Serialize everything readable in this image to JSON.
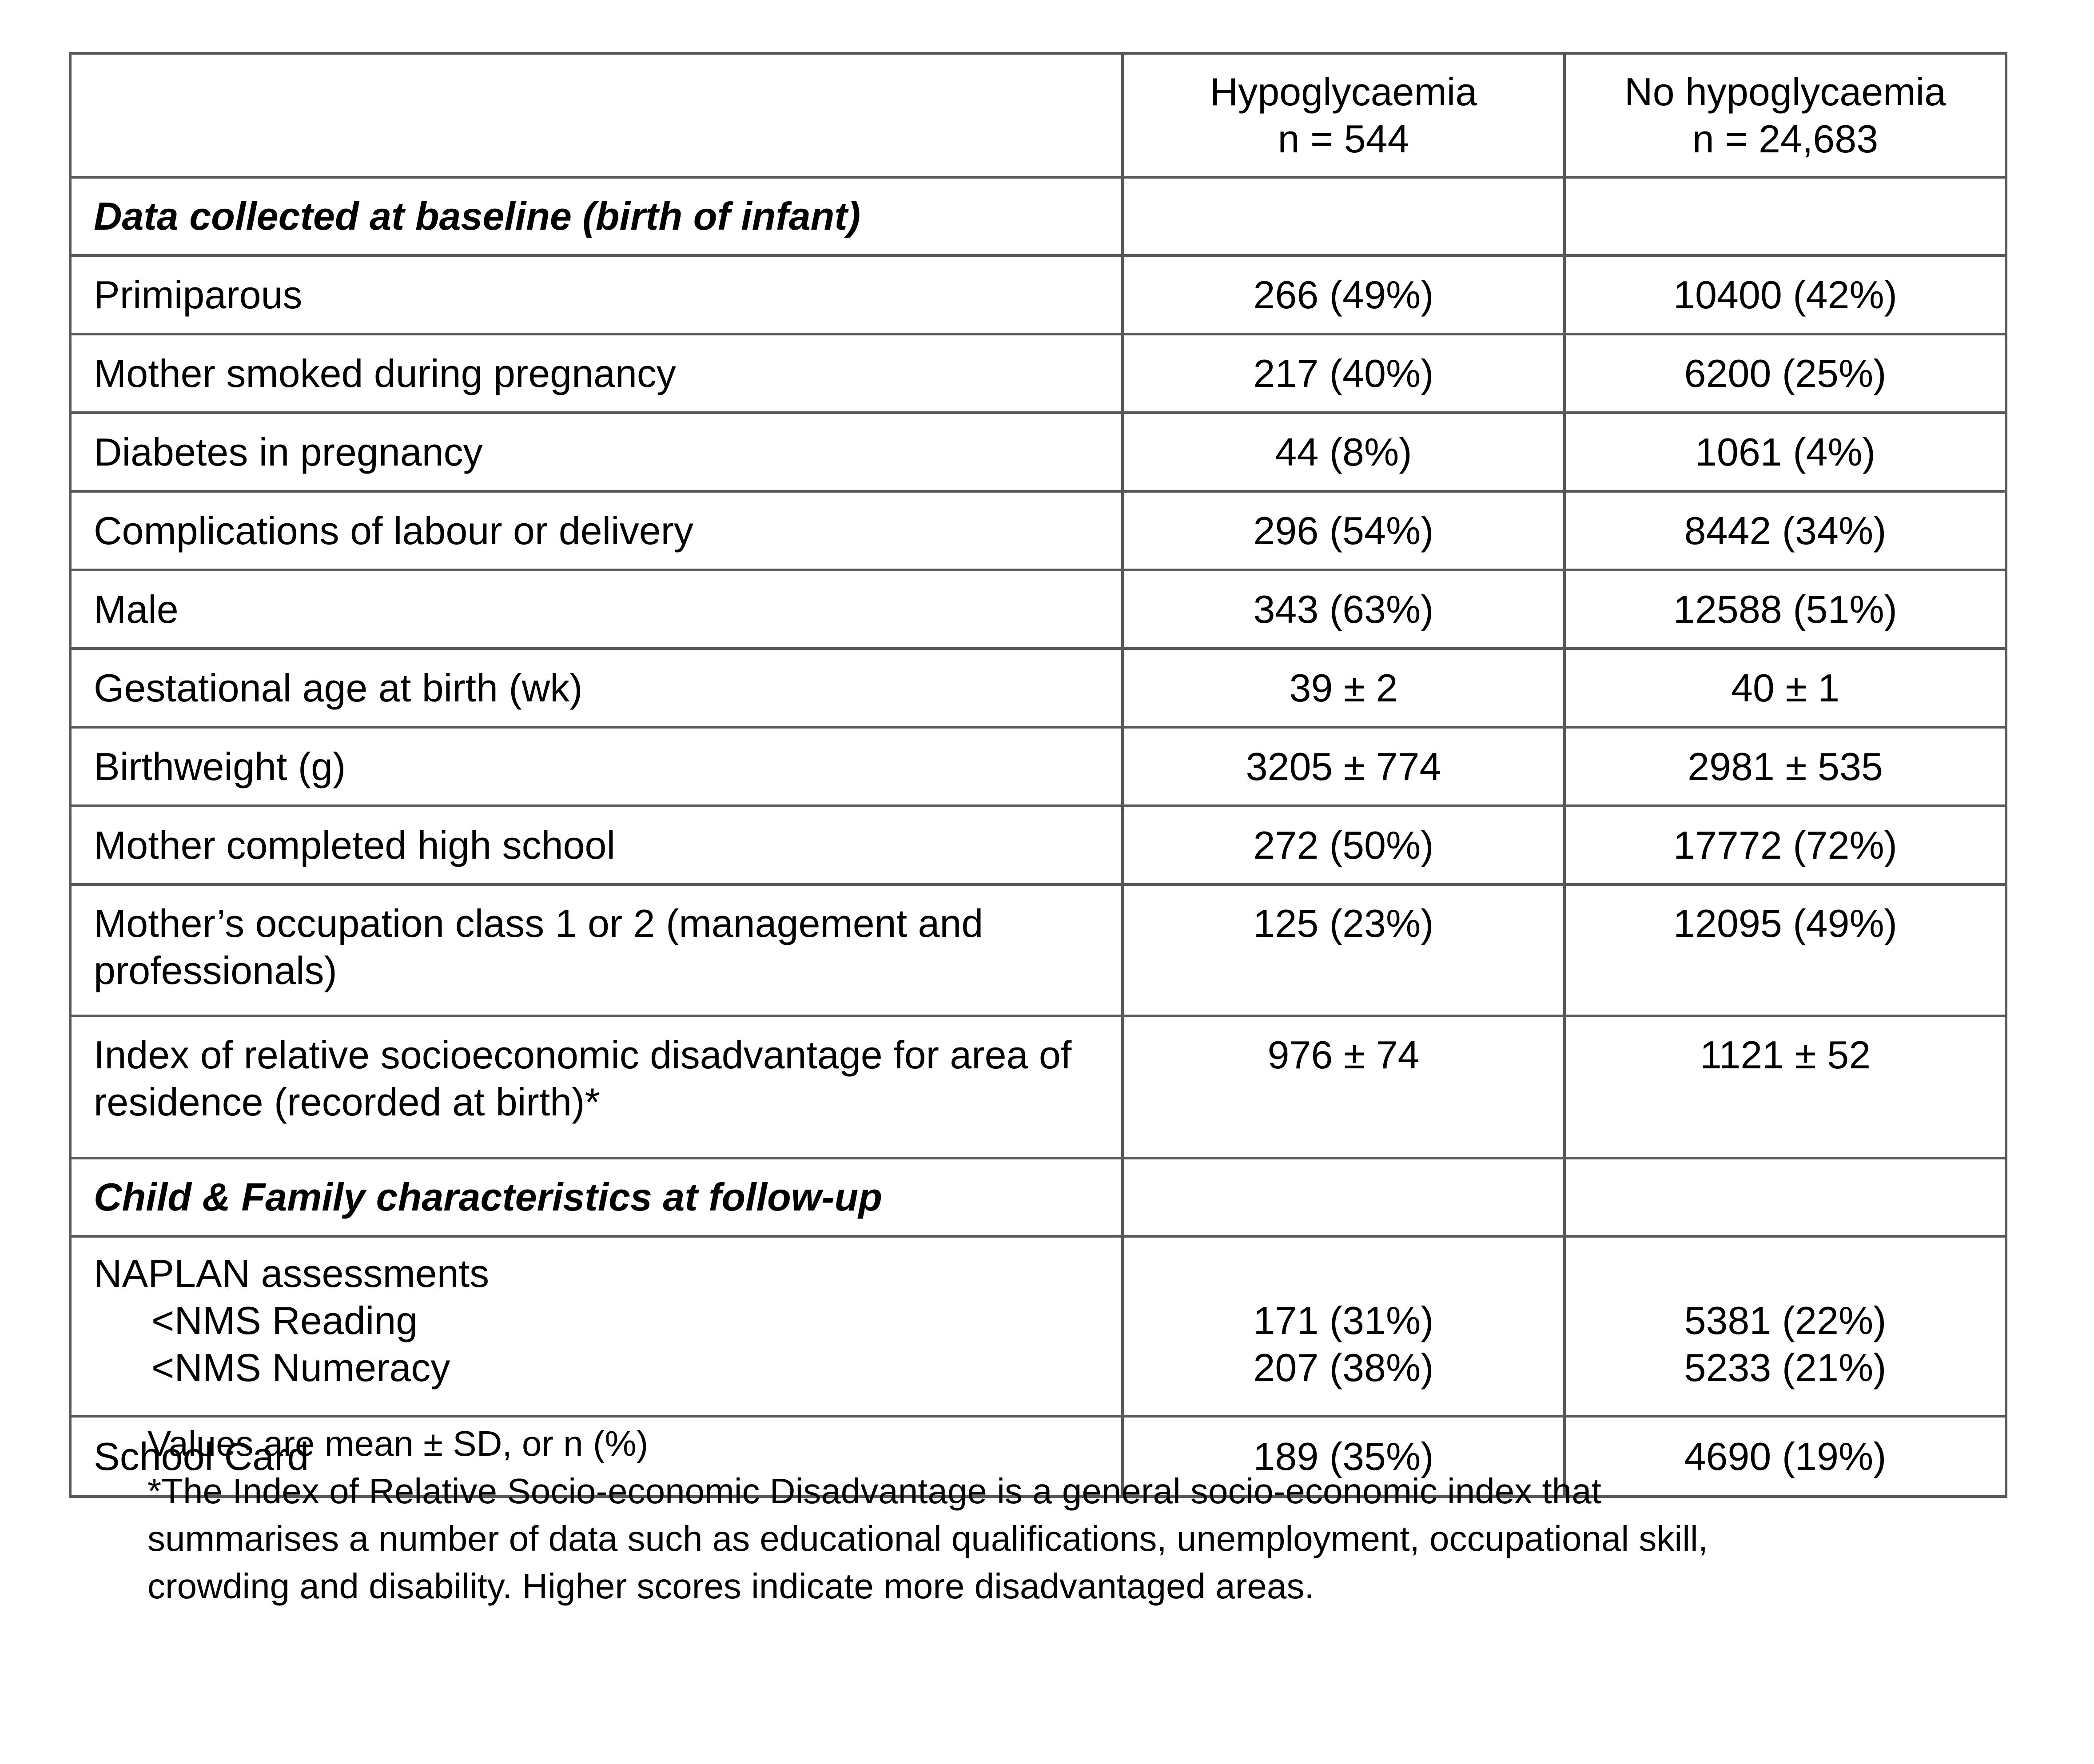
{
  "colors": {
    "border_gray": "#595959",
    "text": "#000000",
    "background": "#ffffff"
  },
  "table": {
    "header": {
      "label_col": "",
      "hypo": {
        "line1": "Hypoglycaemia",
        "line2": "n = 544"
      },
      "no_hypo": {
        "line1": "No hypoglycaemia",
        "line2": "n = 24,683"
      }
    },
    "rows": [
      {
        "type": "section",
        "label": "Data collected at baseline (birth of infant)",
        "hypo": "",
        "no_hypo": ""
      },
      {
        "type": "data",
        "label": "Primiparous",
        "hypo": "266 (49%)",
        "no_hypo": "10400 (42%)"
      },
      {
        "type": "data",
        "label": "Mother smoked during pregnancy",
        "hypo": "217 (40%)",
        "no_hypo": "6200 (25%)"
      },
      {
        "type": "data",
        "label": "Diabetes in pregnancy",
        "hypo": "44 (8%)",
        "no_hypo": "1061 (4%)"
      },
      {
        "type": "data",
        "label": "Complications of labour or delivery",
        "hypo": "296 (54%)",
        "no_hypo": "8442 (34%)"
      },
      {
        "type": "data",
        "label": "Male",
        "hypo": "343 (63%)",
        "no_hypo": "12588 (51%)"
      },
      {
        "type": "data",
        "label": "Gestational age at birth (wk)",
        "hypo": "39 ± 2",
        "no_hypo": "40 ± 1"
      },
      {
        "type": "data",
        "label": "Birthweight (g)",
        "hypo": "3205 ± 774",
        "no_hypo": "2981 ± 535"
      },
      {
        "type": "data",
        "label": "Mother completed high school",
        "hypo": "272 (50%)",
        "no_hypo": "17772 (72%)"
      },
      {
        "type": "data",
        "label": "Mother’s occupation class 1 or 2 (management and professionals)",
        "hypo": "125 (23%)",
        "no_hypo": "12095 (49%)"
      },
      {
        "type": "data",
        "label": "Index of relative socioeconomic disadvantage for area of residence (recorded at birth)*",
        "hypo": "976 ± 74",
        "no_hypo": "1121 ± 52"
      },
      {
        "type": "section",
        "label": "Child & Family characteristics at follow-up",
        "hypo": "",
        "no_hypo": ""
      },
      {
        "type": "multi",
        "label": "NAPLAN assessments",
        "sub_labels": [
          "<NMS Reading",
          "<NMS Numeracy"
        ],
        "hypo": [
          "171 (31%)",
          "207 (38%)"
        ],
        "no_hypo": [
          "5381 (22%)",
          "5233 (21%)"
        ]
      },
      {
        "type": "data",
        "label": "School Card",
        "hypo": "189 (35%)",
        "no_hypo": "4690 (19%)"
      }
    ]
  },
  "footnotes": {
    "values_note": "Values are mean ± SD, or n (%)",
    "asterisk_lines": [
      "*The Index of Relative Socio-economic Disadvantage is a general socio-economic index that",
      "summarises a number of data such as educational qualifications, unemployment, occupational skill,",
      "crowding and disability. Higher scores indicate more disadvantaged areas."
    ]
  }
}
